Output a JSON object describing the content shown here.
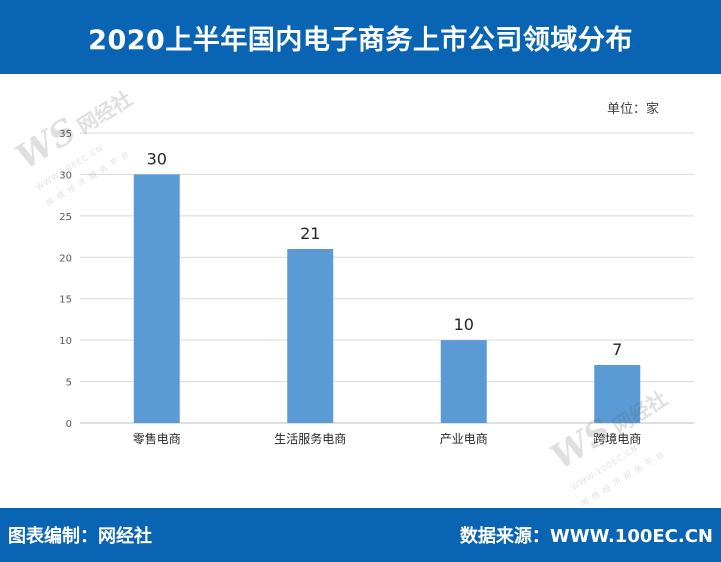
{
  "header": {
    "title": "2020上半年国内电子商务上市公司领域分布"
  },
  "unit_label": "单位：家",
  "footer": {
    "editor": "图表编制：网经社",
    "source": "数据来源：WWW.100EC.CN"
  },
  "watermark": {
    "letters": "WS",
    "name": "网经社",
    "site": "WWW.100EC.CN",
    "slogan": "网 络 经 济 服 务 平 台"
  },
  "colors": {
    "header_bg": "#0a64b4",
    "bar": "#5b9bd5",
    "grid": "#d9d9d9"
  },
  "chart_data": {
    "type": "bar",
    "title": "2020上半年国内电子商务上市公司领域分布",
    "categories": [
      "零售电商",
      "生活服务电商",
      "产业电商",
      "跨境电商"
    ],
    "values": [
      30,
      21,
      10,
      7
    ],
    "y_ticks": [
      "0",
      "5",
      "10",
      "15",
      "20",
      "25",
      "30",
      "35"
    ],
    "ylim": [
      0,
      35
    ],
    "xlabel": "",
    "ylabel": "",
    "grid": true,
    "data_labels": true
  }
}
